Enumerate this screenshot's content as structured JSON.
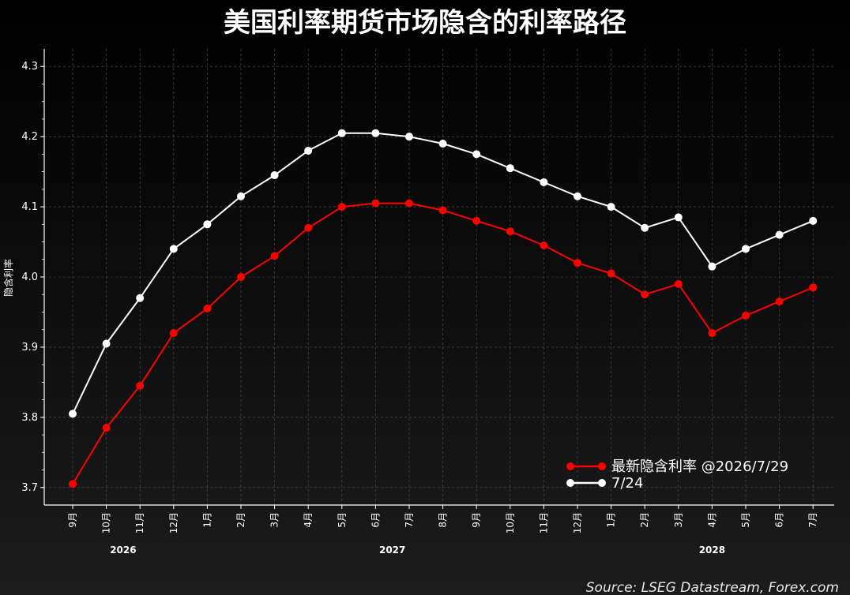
{
  "chart_data": {
    "type": "line",
    "title": "美国利率期货市场隐含的利率路径",
    "ylabel": "隐含利率",
    "xlabel": "",
    "ylim": [
      3.675,
      4.325
    ],
    "yticks": [
      "3.7",
      "3.8",
      "3.9",
      "4.0",
      "4.1",
      "4.2",
      "4.3"
    ],
    "categories": [
      "9月",
      "10月",
      "11月",
      "12月",
      "1月",
      "2月",
      "3月",
      "4月",
      "5月",
      "6月",
      "7月",
      "8月",
      "9月",
      "10月",
      "11月",
      "12月",
      "1月",
      "2月",
      "3月",
      "4月",
      "5月",
      "6月",
      "7月"
    ],
    "years": [
      {
        "label": "2026",
        "start_index": 0,
        "end_index": 3
      },
      {
        "label": "2027",
        "start_index": 4,
        "end_index": 15
      },
      {
        "label": "2028",
        "start_index": 16,
        "end_index": 22
      }
    ],
    "grid": true,
    "legend_position": "bottom-right",
    "series": [
      {
        "name": "最新隐含利率 @2026/7/29",
        "color": "#ff0000",
        "values": [
          3.705,
          3.785,
          3.845,
          3.92,
          3.955,
          4.0,
          4.03,
          4.07,
          4.1,
          4.105,
          4.105,
          4.095,
          4.08,
          4.065,
          4.045,
          4.02,
          4.005,
          3.975,
          3.99,
          3.92,
          3.945,
          3.965,
          3.985
        ]
      },
      {
        "name": "7/24",
        "color": "#ffffff",
        "values": [
          3.805,
          3.905,
          3.97,
          4.04,
          4.075,
          4.115,
          4.145,
          4.18,
          4.205,
          4.205,
          4.2,
          4.19,
          4.175,
          4.155,
          4.135,
          4.115,
          4.1,
          4.07,
          4.085,
          4.015,
          4.04,
          4.06,
          4.08
        ]
      }
    ],
    "source": "Source: LSEG Datastream, Forex.com"
  }
}
